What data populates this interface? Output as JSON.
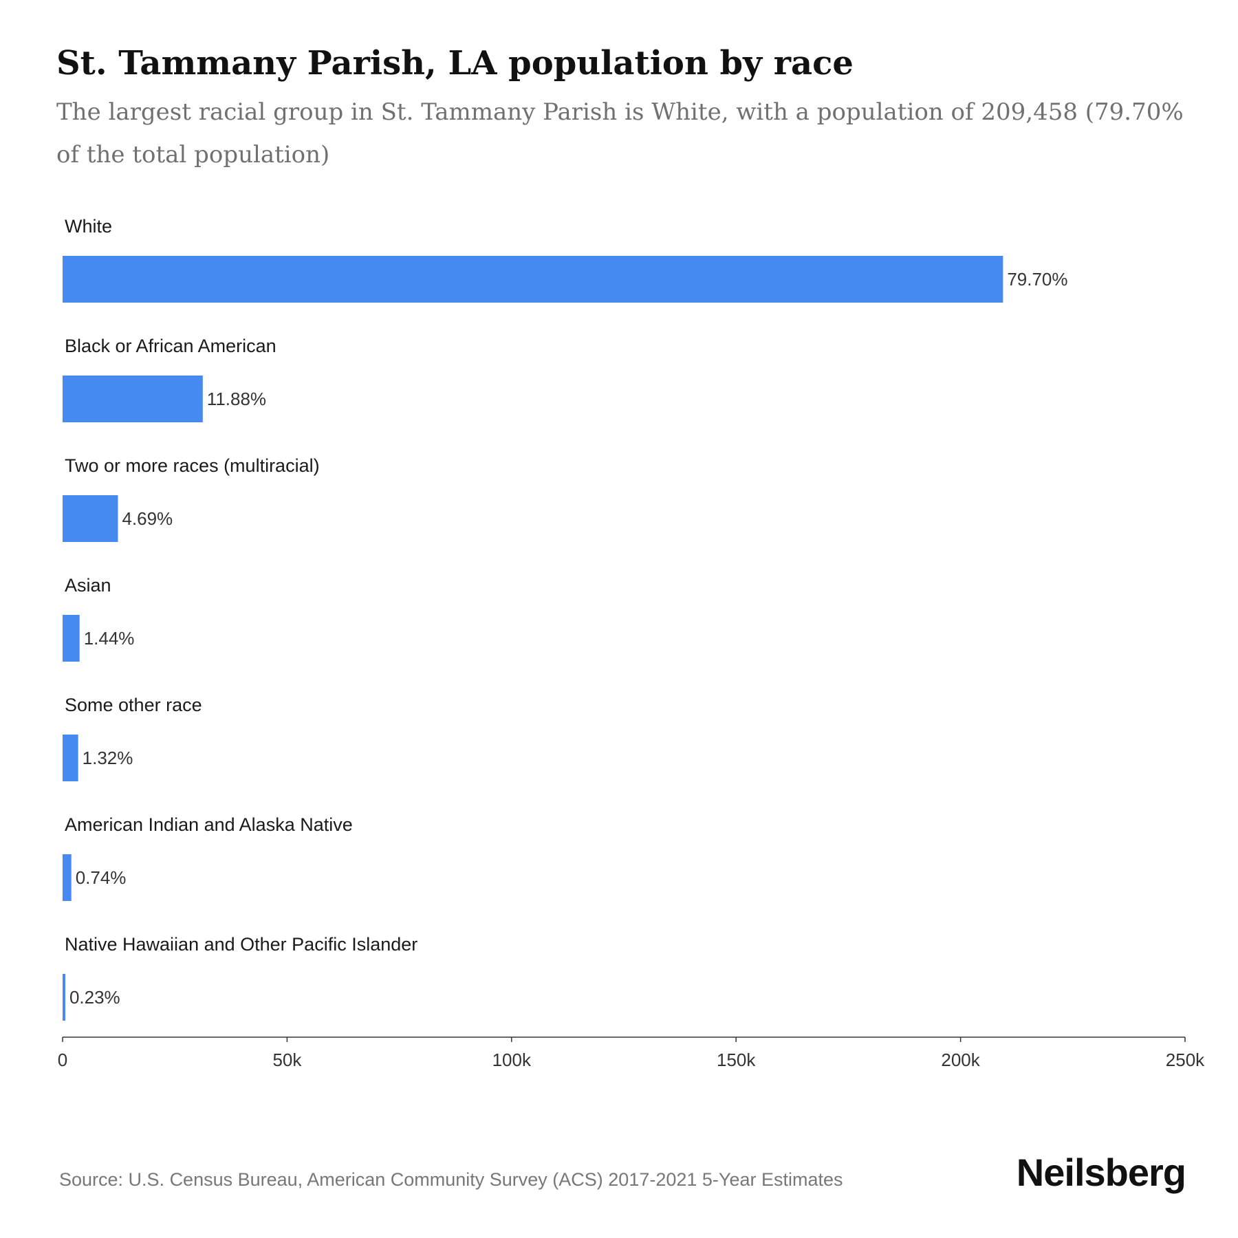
{
  "header": {
    "title": "St. Tammany Parish, LA population by race",
    "subtitle": "The largest racial group in St. Tammany Parish is White, with a population of 209,458 (79.70% of the total population)"
  },
  "chart_data": {
    "type": "bar",
    "orientation": "horizontal",
    "categories": [
      "White",
      "Black or African American",
      "Two or more races (multiracial)",
      "Asian",
      "Some other race",
      "American Indian and Alaska Native",
      "Native Hawaiian and Other Pacific Islander"
    ],
    "values": [
      209458,
      31220,
      12325,
      3784,
      3469,
      1945,
      604
    ],
    "data_labels": [
      "79.70%",
      "11.88%",
      "4.69%",
      "1.44%",
      "1.32%",
      "0.74%",
      "0.23%"
    ],
    "x_ticks": [
      "0",
      "50k",
      "100k",
      "150k",
      "200k",
      "250k"
    ],
    "xlim": [
      0,
      250000
    ],
    "bar_color": "#4589f1",
    "grid": false
  },
  "footer": {
    "source": "Source: U.S. Census Bureau, American Community Survey (ACS) 2017-2021 5-Year Estimates",
    "brand": "Neilsberg"
  }
}
